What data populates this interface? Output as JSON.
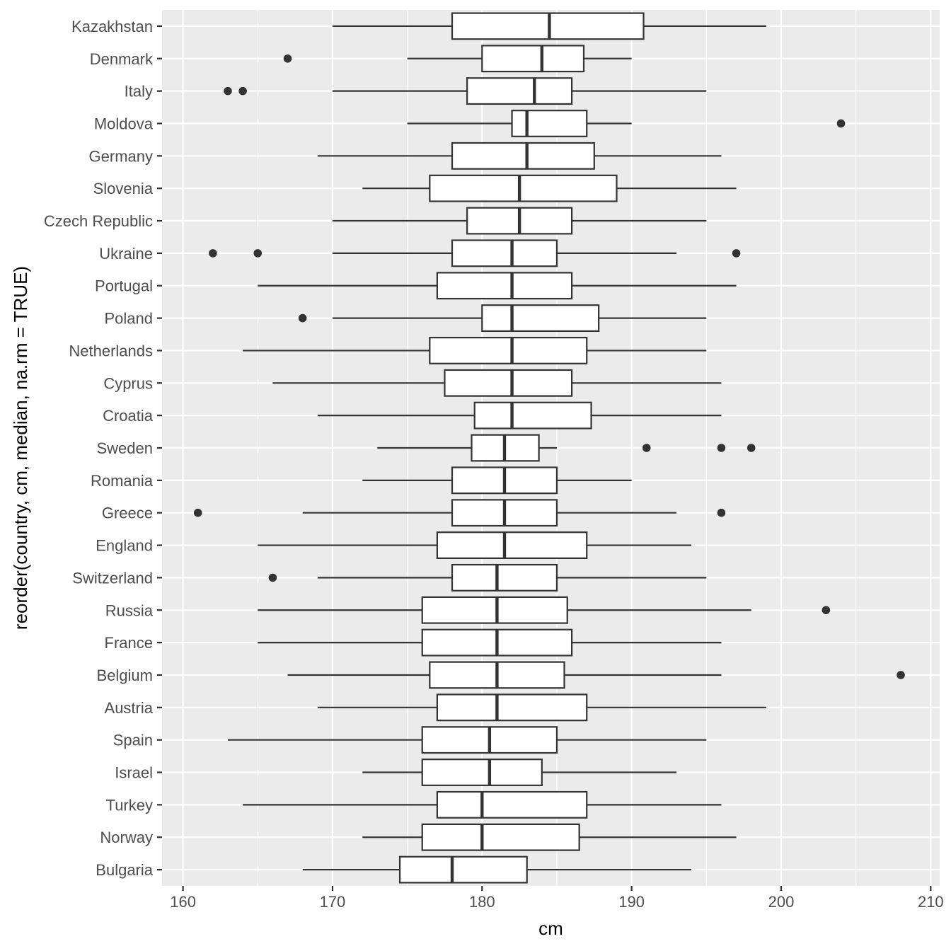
{
  "chart_data": {
    "type": "boxplot",
    "orientation": "horizontal",
    "xlabel": "cm",
    "ylabel": "reorder(country, cm, median, na.rm = TRUE)",
    "xlim": [
      158.6,
      210.6
    ],
    "xticks": [
      160,
      170,
      180,
      190,
      200,
      210
    ],
    "grid": true,
    "panel_background": "#ebebeb",
    "grid_color": "#ffffff",
    "box_fill": "#ffffff",
    "line_color": "#333333",
    "categories": [
      "Kazakhstan",
      "Denmark",
      "Italy",
      "Moldova",
      "Germany",
      "Slovenia",
      "Czech Republic",
      "Ukraine",
      "Portugal",
      "Poland",
      "Netherlands",
      "Cyprus",
      "Croatia",
      "Sweden",
      "Romania",
      "Greece",
      "England",
      "Switzerland",
      "Russia",
      "France",
      "Belgium",
      "Austria",
      "Spain",
      "Israel",
      "Turkey",
      "Norway",
      "Bulgaria"
    ],
    "boxes": [
      {
        "country": "Kazakhstan",
        "whisker_low": 170,
        "q1": 178,
        "median": 184.5,
        "q3": 190.8,
        "whisker_high": 199,
        "outliers": []
      },
      {
        "country": "Denmark",
        "whisker_low": 175,
        "q1": 180,
        "median": 184,
        "q3": 186.8,
        "whisker_high": 190,
        "outliers": [
          167
        ]
      },
      {
        "country": "Italy",
        "whisker_low": 170,
        "q1": 179,
        "median": 183.5,
        "q3": 186,
        "whisker_high": 195,
        "outliers": [
          163,
          164
        ]
      },
      {
        "country": "Moldova",
        "whisker_low": 175,
        "q1": 182,
        "median": 183,
        "q3": 187,
        "whisker_high": 190,
        "outliers": [
          204
        ]
      },
      {
        "country": "Germany",
        "whisker_low": 169,
        "q1": 178,
        "median": 183,
        "q3": 187.5,
        "whisker_high": 196,
        "outliers": []
      },
      {
        "country": "Slovenia",
        "whisker_low": 172,
        "q1": 176.5,
        "median": 182.5,
        "q3": 189,
        "whisker_high": 197,
        "outliers": []
      },
      {
        "country": "Czech Republic",
        "whisker_low": 170,
        "q1": 179,
        "median": 182.5,
        "q3": 186,
        "whisker_high": 195,
        "outliers": []
      },
      {
        "country": "Ukraine",
        "whisker_low": 170,
        "q1": 178,
        "median": 182,
        "q3": 185,
        "whisker_high": 193,
        "outliers": [
          162,
          165,
          197
        ]
      },
      {
        "country": "Portugal",
        "whisker_low": 165,
        "q1": 177,
        "median": 182,
        "q3": 186,
        "whisker_high": 197,
        "outliers": []
      },
      {
        "country": "Poland",
        "whisker_low": 170,
        "q1": 180,
        "median": 182,
        "q3": 187.8,
        "whisker_high": 195,
        "outliers": [
          168
        ]
      },
      {
        "country": "Netherlands",
        "whisker_low": 164,
        "q1": 176.5,
        "median": 182,
        "q3": 187,
        "whisker_high": 195,
        "outliers": []
      },
      {
        "country": "Cyprus",
        "whisker_low": 166,
        "q1": 177.5,
        "median": 182,
        "q3": 186,
        "whisker_high": 196,
        "outliers": []
      },
      {
        "country": "Croatia",
        "whisker_low": 169,
        "q1": 179.5,
        "median": 182,
        "q3": 187.3,
        "whisker_high": 196,
        "outliers": []
      },
      {
        "country": "Sweden",
        "whisker_low": 173,
        "q1": 179.3,
        "median": 181.5,
        "q3": 183.8,
        "whisker_high": 185,
        "outliers": [
          191,
          196,
          198
        ]
      },
      {
        "country": "Romania",
        "whisker_low": 172,
        "q1": 178,
        "median": 181.5,
        "q3": 185,
        "whisker_high": 190,
        "outliers": []
      },
      {
        "country": "Greece",
        "whisker_low": 168,
        "q1": 178,
        "median": 181.5,
        "q3": 185,
        "whisker_high": 193,
        "outliers": [
          161,
          196
        ]
      },
      {
        "country": "England",
        "whisker_low": 165,
        "q1": 177,
        "median": 181.5,
        "q3": 187,
        "whisker_high": 194,
        "outliers": []
      },
      {
        "country": "Switzerland",
        "whisker_low": 169,
        "q1": 178,
        "median": 181,
        "q3": 185,
        "whisker_high": 195,
        "outliers": [
          166
        ]
      },
      {
        "country": "Russia",
        "whisker_low": 165,
        "q1": 176,
        "median": 181,
        "q3": 185.7,
        "whisker_high": 198,
        "outliers": [
          203
        ]
      },
      {
        "country": "France",
        "whisker_low": 165,
        "q1": 176,
        "median": 181,
        "q3": 186,
        "whisker_high": 196,
        "outliers": []
      },
      {
        "country": "Belgium",
        "whisker_low": 167,
        "q1": 176.5,
        "median": 181,
        "q3": 185.5,
        "whisker_high": 196,
        "outliers": [
          208
        ]
      },
      {
        "country": "Austria",
        "whisker_low": 169,
        "q1": 177,
        "median": 181,
        "q3": 187,
        "whisker_high": 199,
        "outliers": []
      },
      {
        "country": "Spain",
        "whisker_low": 163,
        "q1": 176,
        "median": 180.5,
        "q3": 185,
        "whisker_high": 195,
        "outliers": []
      },
      {
        "country": "Israel",
        "whisker_low": 172,
        "q1": 176,
        "median": 180.5,
        "q3": 184,
        "whisker_high": 193,
        "outliers": []
      },
      {
        "country": "Turkey",
        "whisker_low": 164,
        "q1": 177,
        "median": 180,
        "q3": 187,
        "whisker_high": 196,
        "outliers": []
      },
      {
        "country": "Norway",
        "whisker_low": 172,
        "q1": 176,
        "median": 180,
        "q3": 186.5,
        "whisker_high": 197,
        "outliers": []
      },
      {
        "country": "Bulgaria",
        "whisker_low": 168,
        "q1": 174.5,
        "median": 178,
        "q3": 183,
        "whisker_high": 194,
        "outliers": []
      }
    ]
  }
}
